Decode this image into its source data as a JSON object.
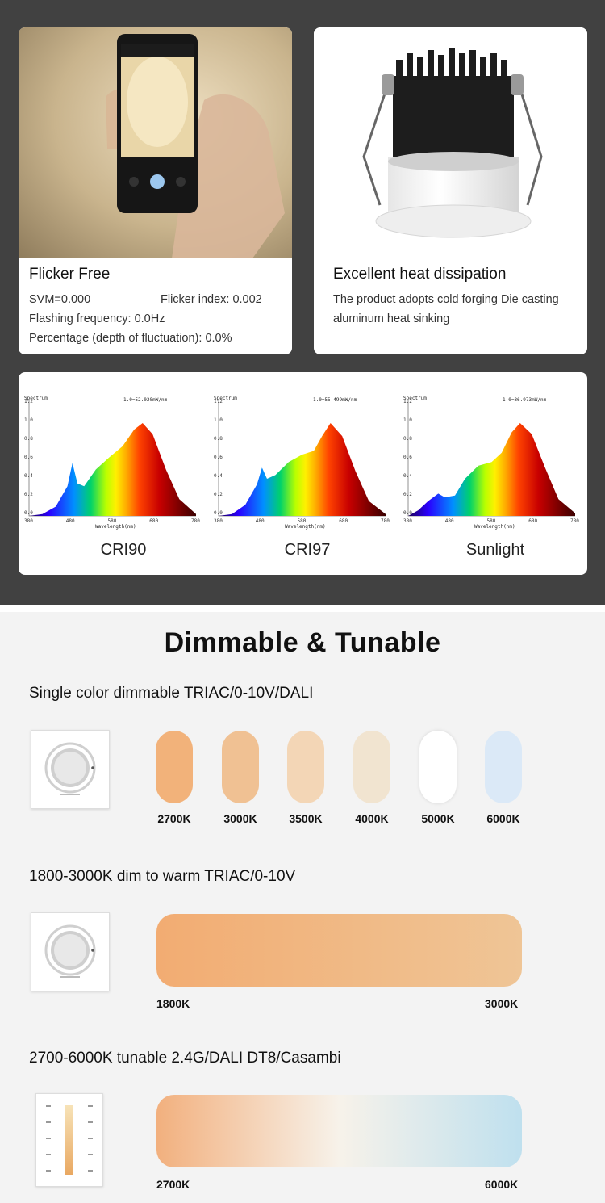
{
  "features": [
    {
      "title": "Flicker Free",
      "svm": "SVM=0.000",
      "flicker_index": "Flicker index: 0.002",
      "flashing": "Flashing frequency: 0.0Hz",
      "percentage": "Percentage (depth of fluctuation): 0.0%"
    },
    {
      "title": "Excellent heat dissipation",
      "line1": "The product adopts cold forging Die casting",
      "line2": "aluminum heat sinking"
    }
  ],
  "spectra": [
    {
      "label": "CRI90",
      "peak_note": "1.0=52.020mW/nm",
      "spectrum_label": "Spectrum",
      "xlabel": "Wavelength(nm)",
      "y_ticks": [
        "1.2",
        "1.0",
        "0.8",
        "0.6",
        "0.4",
        "0.2",
        "0.0"
      ],
      "x_ticks": [
        "380",
        "480",
        "580",
        "680",
        "780"
      ]
    },
    {
      "label": "CRI97",
      "peak_note": "1.0=55.499mW/nm",
      "spectrum_label": "Spectrum",
      "xlabel": "Wavelength(nm)",
      "y_ticks": [
        "1.2",
        "1.0",
        "0.8",
        "0.6",
        "0.4",
        "0.2",
        "0.0"
      ],
      "x_ticks": [
        "380",
        "480",
        "580",
        "680",
        "780"
      ]
    },
    {
      "label": "Sunlight",
      "peak_note": "1.0=36.973mW/nm",
      "spectrum_label": "Spectrum",
      "xlabel": "Wavelength(nm)",
      "y_ticks": [
        "1.2",
        "1.0",
        "0.8",
        "0.6",
        "0.4",
        "0.2",
        "0.0"
      ],
      "x_ticks": [
        "380",
        "480",
        "580",
        "680",
        "780"
      ]
    }
  ],
  "heading": "Dimmable & Tunable",
  "single": {
    "title": "Single color dimmable TRIAC/0-10V/DALI",
    "temps": [
      {
        "label": "2700K",
        "color": "#f2b27a"
      },
      {
        "label": "3000K",
        "color": "#f0c193"
      },
      {
        "label": "3500K",
        "color": "#f3d6b6"
      },
      {
        "label": "4000K",
        "color": "#f1e4d0"
      },
      {
        "label": "5000K",
        "color": "#ffffff"
      },
      {
        "label": "6000K",
        "color": "#dbe9f7"
      }
    ]
  },
  "dim_to_warm": {
    "title": "1800-3000K dim to warm TRIAC/0-10V",
    "start": "1800K",
    "end": "3000K",
    "colors": [
      "#f2ac72",
      "#efc596"
    ]
  },
  "tunable": {
    "title": "2700-6000K tunable 2.4G/DALI DT8/Casambi",
    "start": "2700K",
    "end": "6000K",
    "colors": [
      "#f2b07e",
      "#f7f2ea",
      "#bfe0ee"
    ]
  }
}
